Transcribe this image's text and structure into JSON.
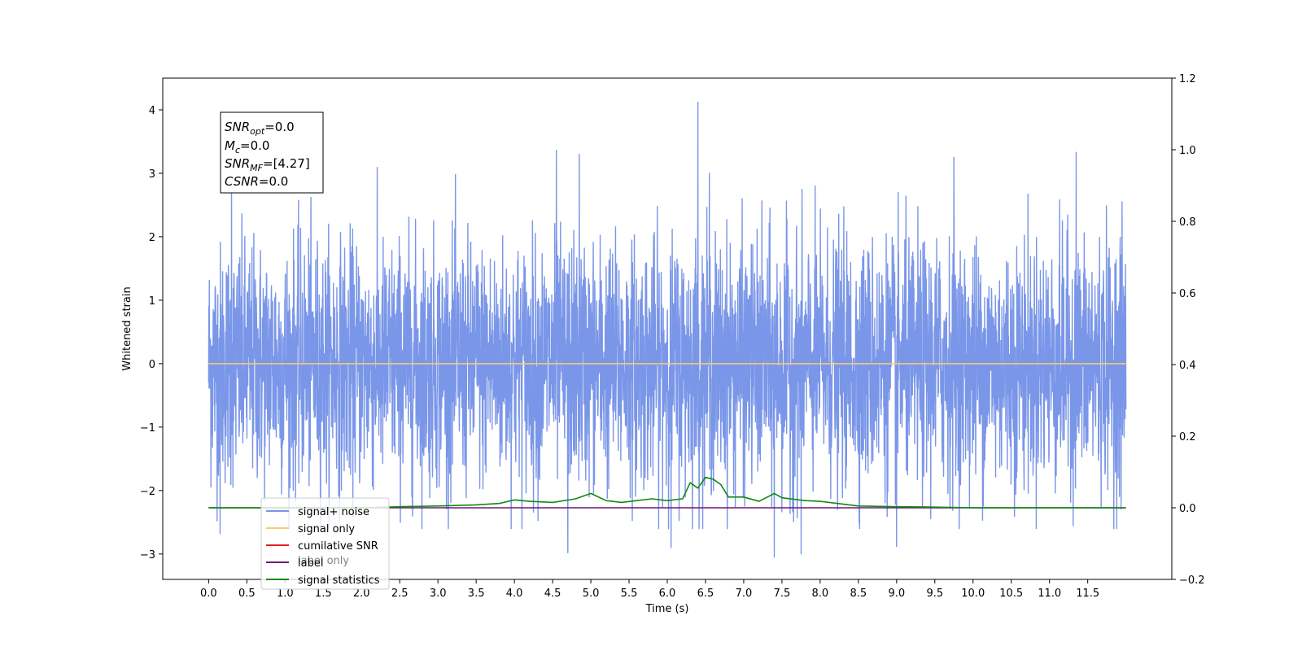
{
  "chart_data": {
    "type": "line",
    "title": "",
    "xlabel": "Time (s)",
    "ylabel": "Whitened strain",
    "xlim": [
      -0.6,
      12.6
    ],
    "ylim": [
      -3.4,
      4.5
    ],
    "ylim_right": [
      -0.2,
      1.2
    ],
    "x_ticks": [
      0.0,
      0.5,
      1.0,
      1.5,
      2.0,
      2.5,
      3.0,
      3.5,
      4.0,
      4.5,
      5.0,
      5.5,
      6.0,
      6.5,
      7.0,
      7.5,
      8.0,
      8.5,
      9.0,
      9.5,
      10.0,
      10.5,
      11.0,
      11.5
    ],
    "x_tick_labels": [
      "0.0",
      "0.5",
      "1.0",
      "1.5",
      "2.0",
      "2.5",
      "3.0",
      "3.5",
      "4.0",
      "4.5",
      "5.0",
      "5.5",
      "6.0",
      "6.5",
      "7.0",
      "7.5",
      "8.0",
      "8.5",
      "9.0",
      "9.5",
      "10.0",
      "10.5",
      "11.0",
      "11.5"
    ],
    "y_ticks": [
      -3,
      -2,
      -1,
      0,
      1,
      2,
      3,
      4
    ],
    "y_tick_labels": [
      "−3",
      "−2",
      "−1",
      "0",
      "1",
      "2",
      "3",
      "4"
    ],
    "y_ticks_right": [
      -0.2,
      0.0,
      0.2,
      0.4,
      0.6,
      0.8,
      1.0,
      1.2
    ],
    "y_tick_labels_right": [
      "−0.2",
      "0.0",
      "0.2",
      "0.4",
      "0.6",
      "0.8",
      "1.0",
      "1.2"
    ],
    "annotation": {
      "lines": [
        {
          "base": "SNR",
          "sub": "opt",
          "rest": "=0.0"
        },
        {
          "base": "M",
          "sub": "c",
          "rest": "=0.0"
        },
        {
          "base": "SNR",
          "sub": "MF",
          "rest": "=[4.27]"
        },
        {
          "base": "CSNR",
          "sub": "",
          "rest": "=0.0"
        }
      ]
    },
    "legend": {
      "placement": "lower-left",
      "entries": [
        {
          "name": "signal+ noise",
          "color": "#7a96e8"
        },
        {
          "name": "signal only",
          "color": "#f9c97a"
        },
        {
          "name": "cumilative SNR",
          "color": "#e8201a"
        },
        {
          "name": "label",
          "color": "#6f1a72"
        },
        {
          "name": "signal statistics",
          "color": "#118a11"
        }
      ],
      "hidden_text": [
        "label only"
      ]
    },
    "series": [
      {
        "name": "signal+ noise",
        "axis": "left",
        "color": "#7a96e8",
        "x_range": [
          0.0,
          12.0
        ],
        "samples": 4000,
        "envelope_typical": [
          -1.7,
          1.7
        ],
        "peaks": [
          {
            "x": 6.4,
            "y": 4.12
          },
          {
            "x": 0.3,
            "y": 2.9
          },
          {
            "x": 4.55,
            "y": 3.36
          },
          {
            "x": 4.85,
            "y": 3.3
          },
          {
            "x": 6.55,
            "y": 3.0
          },
          {
            "x": 9.75,
            "y": 3.25
          },
          {
            "x": 11.35,
            "y": 3.33
          },
          {
            "x": 11.95,
            "y": 2.55
          },
          {
            "x": 7.4,
            "y": -3.05
          },
          {
            "x": 4.7,
            "y": -2.98
          },
          {
            "x": 6.05,
            "y": -2.9
          },
          {
            "x": 9.0,
            "y": -2.88
          },
          {
            "x": 0.15,
            "y": -2.68
          },
          {
            "x": 7.75,
            "y": -3.0
          }
        ]
      },
      {
        "name": "signal only",
        "axis": "left",
        "color": "#f9c97a",
        "x": [
          0.0,
          12.0
        ],
        "y": [
          0.0,
          0.0
        ]
      },
      {
        "name": "label",
        "axis": "right",
        "color": "#6f1a72",
        "x": [
          0.0,
          12.0
        ],
        "y": [
          0.0,
          0.0
        ]
      },
      {
        "name": "signal statistics",
        "axis": "right",
        "color": "#118a11",
        "x": [
          0.0,
          2.0,
          2.5,
          3.0,
          3.5,
          3.8,
          4.0,
          4.2,
          4.5,
          4.8,
          5.0,
          5.2,
          5.4,
          5.6,
          5.8,
          6.0,
          6.2,
          6.3,
          6.4,
          6.5,
          6.6,
          6.7,
          6.8,
          7.0,
          7.2,
          7.4,
          7.5,
          7.8,
          8.0,
          8.5,
          9.0,
          9.5,
          10.0,
          12.0
        ],
        "y": [
          0.0,
          0.0,
          0.003,
          0.005,
          0.008,
          0.012,
          0.022,
          0.018,
          0.015,
          0.025,
          0.04,
          0.02,
          0.015,
          0.02,
          0.025,
          0.02,
          0.025,
          0.07,
          0.055,
          0.085,
          0.08,
          0.065,
          0.03,
          0.03,
          0.018,
          0.04,
          0.028,
          0.02,
          0.018,
          0.005,
          0.003,
          0.002,
          0.0,
          0.0
        ]
      }
    ]
  }
}
